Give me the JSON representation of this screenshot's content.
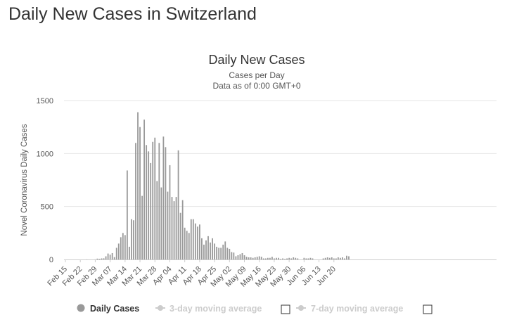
{
  "page": {
    "title": "Daily New Cases in Switzerland"
  },
  "colors": {
    "bar": "#999999",
    "grid": "#e6e6e6",
    "legend_active": "#333333",
    "legend_inactive": "#cccccc",
    "text": "#333333"
  },
  "chart_data": {
    "type": "bar",
    "title": "Daily New Cases",
    "subtitle_1": "Cases per Day",
    "subtitle_2": "Data as of 0:00 GMT+0",
    "ylabel": "Novel Coronavirus Daily Cases",
    "xlabel": "",
    "ylim": [
      0,
      1500
    ],
    "yticks": [
      0,
      500,
      1000,
      1500
    ],
    "grid": true,
    "legend_position": "bottom",
    "xtick_labels": [
      "Feb 15",
      "Feb 22",
      "Feb 29",
      "Mar 07",
      "Mar 14",
      "Mar 21",
      "Mar 28",
      "Apr 04",
      "Apr 11",
      "Apr 18",
      "Apr 25",
      "May 02",
      "May 09",
      "May 16",
      "May 23",
      "May 30",
      "Jun 06",
      "Jun 13",
      "Jun 20"
    ],
    "start_date": "Feb 15",
    "series": [
      {
        "name": "Daily Cases",
        "values": [
          0,
          0,
          0,
          0,
          0,
          0,
          0,
          0,
          0,
          0,
          1,
          0,
          0,
          0,
          1,
          8,
          6,
          10,
          11,
          30,
          56,
          45,
          60,
          22,
          110,
          150,
          210,
          250,
          230,
          840,
          120,
          380,
          370,
          1100,
          1390,
          1250,
          600,
          1320,
          1080,
          1020,
          910,
          1110,
          1150,
          740,
          1100,
          680,
          1160,
          1060,
          640,
          890,
          590,
          550,
          590,
          1030,
          440,
          560,
          300,
          270,
          250,
          380,
          380,
          340,
          310,
          330,
          200,
          140,
          180,
          220,
          160,
          200,
          150,
          120,
          110,
          110,
          140,
          170,
          110,
          100,
          70,
          65,
          30,
          40,
          50,
          60,
          40,
          25,
          20,
          20,
          15,
          20,
          25,
          30,
          25,
          10,
          10,
          15,
          15,
          25,
          10,
          15,
          15,
          5,
          10,
          5,
          10,
          15,
          10,
          20,
          15,
          10,
          0,
          0,
          15,
          10,
          10,
          15,
          10,
          0,
          0,
          0,
          0,
          10,
          15,
          20,
          15,
          20,
          10,
          10,
          20,
          15,
          20,
          10,
          35,
          30
        ]
      },
      {
        "name": "3-day moving average",
        "values": []
      },
      {
        "name": "7-day moving average",
        "values": []
      }
    ]
  }
}
